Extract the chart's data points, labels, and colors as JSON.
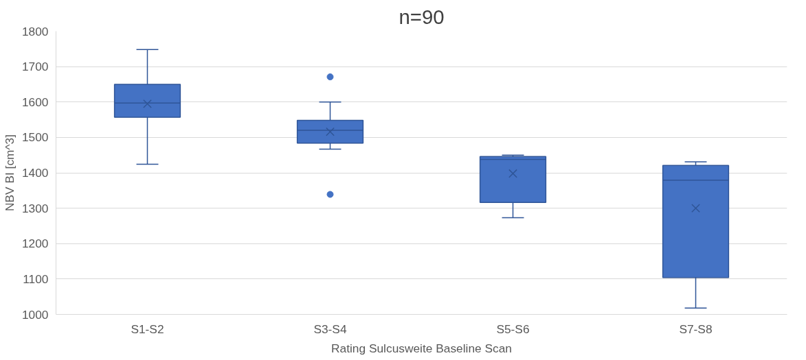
{
  "chart_data": {
    "type": "box",
    "title": "n=90",
    "xlabel": "Rating Sulcusweite Baseline Scan",
    "ylabel": "NBV BI [cm^3]",
    "categories": [
      "S1-S2",
      "S3-S4",
      "S5-S6",
      "S7-S8"
    ],
    "series": [
      {
        "color": "#4472c4",
        "boxes": [
          {
            "low": 1424,
            "q1": 1557,
            "median": 1597,
            "q3": 1650,
            "high": 1748,
            "mean": 1595
          },
          {
            "low": 1467,
            "q1": 1484,
            "median": 1520,
            "q3": 1548,
            "high": 1600,
            "mean": 1516,
            "outliers": [
              1671,
              1339
            ]
          },
          {
            "low": 1273,
            "q1": 1316,
            "median": 1438,
            "q3": 1446,
            "high": 1450,
            "mean": 1398
          },
          {
            "low": 1018,
            "q1": 1104,
            "median": 1379,
            "q3": 1421,
            "high": 1431,
            "mean": 1300
          }
        ]
      }
    ],
    "ylim": [
      1000,
      1800
    ],
    "yticks": [
      1000,
      1100,
      1200,
      1300,
      1400,
      1500,
      1600,
      1700,
      1800
    ],
    "grid": "y"
  }
}
